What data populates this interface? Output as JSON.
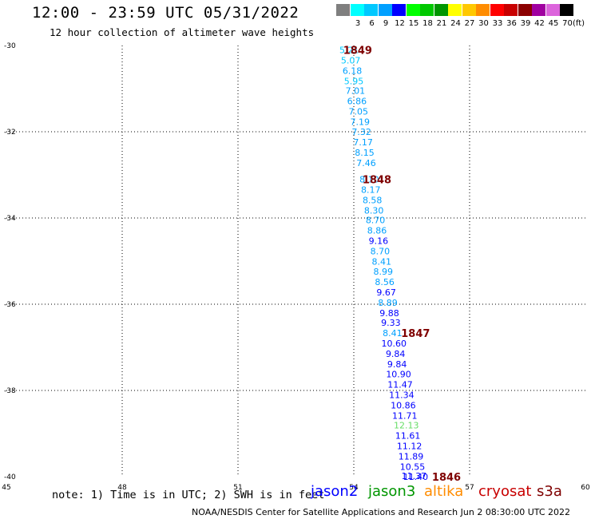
{
  "title": "12:00 - 23:59 UTC 05/31/2022",
  "subtitle": "12 hour collection of altimeter wave heights",
  "scale": {
    "unit": "(ft)",
    "swatches": [
      {
        "label": "",
        "color": "#7f7f7f"
      },
      {
        "label": "3",
        "color": "#00ffff"
      },
      {
        "label": "6",
        "color": "#00c8ff"
      },
      {
        "label": "9",
        "color": "#00a0ff"
      },
      {
        "label": "12",
        "color": "#0000ff"
      },
      {
        "label": "15",
        "color": "#00ff00"
      },
      {
        "label": "18",
        "color": "#00c800"
      },
      {
        "label": "21",
        "color": "#009600"
      },
      {
        "label": "24",
        "color": "#ffff00"
      },
      {
        "label": "27",
        "color": "#ffc800"
      },
      {
        "label": "30",
        "color": "#ff8c00"
      },
      {
        "label": "33",
        "color": "#ff0000"
      },
      {
        "label": "36",
        "color": "#c80000"
      },
      {
        "label": "39",
        "color": "#8b0000"
      },
      {
        "label": "42",
        "color": "#a000a0"
      },
      {
        "label": "45",
        "color": "#dc64dc"
      },
      {
        "label": "70",
        "color": "#000000"
      }
    ]
  },
  "note": "note: 1) Time is in UTC; 2) SWH is in feet",
  "satellites": [
    {
      "name": "jason2",
      "color": "#0000ff"
    },
    {
      "name": "jason3",
      "color": "#009600"
    },
    {
      "name": "altika",
      "color": "#ff8c00"
    },
    {
      "name": "cryosat",
      "color": "#c80000"
    },
    {
      "name": "s3a",
      "color": "#7f0000"
    }
  ],
  "footer": "NOAA/NESDIS Center for Satellite Applications and Research    Jun  2 08:30:00 UTC 2022",
  "chart_data": {
    "type": "scatter",
    "xlim": [
      45,
      60
    ],
    "ylim": [
      -40,
      -30
    ],
    "x_ticks": [
      "45",
      "48",
      "51",
      "54",
      "57",
      "60"
    ],
    "y_ticks": [
      "-30",
      "-32",
      "-34",
      "-36",
      "-38",
      "-40"
    ],
    "grid": true,
    "points": [
      {
        "x": 53.88,
        "y": -30.1,
        "label": "5.21",
        "color": "#00c8ff"
      },
      {
        "x": 53.92,
        "y": -30.34,
        "label": "5.07",
        "color": "#00c8ff"
      },
      {
        "x": 53.96,
        "y": -30.58,
        "label": "6.18",
        "color": "#00a0ff"
      },
      {
        "x": 54.0,
        "y": -30.82,
        "label": "5.95",
        "color": "#00c8ff"
      },
      {
        "x": 54.04,
        "y": -31.05,
        "label": "7.01",
        "color": "#00a0ff"
      },
      {
        "x": 54.08,
        "y": -31.29,
        "label": "6.86",
        "color": "#00a0ff"
      },
      {
        "x": 54.12,
        "y": -31.53,
        "label": "7.05",
        "color": "#00a0ff"
      },
      {
        "x": 54.16,
        "y": -31.77,
        "label": "7.19",
        "color": "#00a0ff"
      },
      {
        "x": 54.2,
        "y": -32.0,
        "label": "7.32",
        "color": "#00a0ff"
      },
      {
        "x": 54.24,
        "y": -32.24,
        "label": "7.17",
        "color": "#00a0ff"
      },
      {
        "x": 54.28,
        "y": -32.48,
        "label": "8.15",
        "color": "#00a0ff"
      },
      {
        "x": 54.32,
        "y": -32.72,
        "label": "7.46",
        "color": "#00a0ff"
      },
      {
        "x": 54.4,
        "y": -33.1,
        "label": "8.10",
        "color": "#00a0ff"
      },
      {
        "x": 54.44,
        "y": -33.34,
        "label": "8.17",
        "color": "#00a0ff"
      },
      {
        "x": 54.48,
        "y": -33.58,
        "label": "8.58",
        "color": "#00a0ff"
      },
      {
        "x": 54.52,
        "y": -33.82,
        "label": "8.30",
        "color": "#00a0ff"
      },
      {
        "x": 54.56,
        "y": -34.05,
        "label": "8.70",
        "color": "#00a0ff"
      },
      {
        "x": 54.6,
        "y": -34.29,
        "label": "8.86",
        "color": "#00a0ff"
      },
      {
        "x": 54.64,
        "y": -34.53,
        "label": "9.16",
        "color": "#0000ff"
      },
      {
        "x": 54.68,
        "y": -34.77,
        "label": "8.70",
        "color": "#00a0ff"
      },
      {
        "x": 54.72,
        "y": -35.01,
        "label": "8.41",
        "color": "#00a0ff"
      },
      {
        "x": 54.76,
        "y": -35.24,
        "label": "8.99",
        "color": "#00a0ff"
      },
      {
        "x": 54.8,
        "y": -35.48,
        "label": "8.56",
        "color": "#00a0ff"
      },
      {
        "x": 54.84,
        "y": -35.72,
        "label": "9.67",
        "color": "#0000ff"
      },
      {
        "x": 54.88,
        "y": -35.96,
        "label": "8.89",
        "color": "#00a0ff"
      },
      {
        "x": 54.92,
        "y": -36.2,
        "label": "9.88",
        "color": "#0000ff"
      },
      {
        "x": 54.96,
        "y": -36.43,
        "label": "9.33",
        "color": "#0000ff"
      },
      {
        "x": 55.0,
        "y": -36.67,
        "label": "8.41",
        "color": "#00a0ff"
      },
      {
        "x": 55.04,
        "y": -36.91,
        "label": "10.60",
        "color": "#0000ff"
      },
      {
        "x": 55.08,
        "y": -37.15,
        "label": "9.84",
        "color": "#0000ff"
      },
      {
        "x": 55.12,
        "y": -37.39,
        "label": "9.84",
        "color": "#0000ff"
      },
      {
        "x": 55.16,
        "y": -37.62,
        "label": "10.90",
        "color": "#0000ff"
      },
      {
        "x": 55.2,
        "y": -37.86,
        "label": "11.47",
        "color": "#0000ff"
      },
      {
        "x": 55.24,
        "y": -38.1,
        "label": "11.34",
        "color": "#0000ff"
      },
      {
        "x": 55.28,
        "y": -38.34,
        "label": "10.86",
        "color": "#0000ff"
      },
      {
        "x": 55.32,
        "y": -38.58,
        "label": "11.71",
        "color": "#0000ff"
      },
      {
        "x": 55.36,
        "y": -38.81,
        "label": "12.13",
        "color": "#66dd66"
      },
      {
        "x": 55.4,
        "y": -39.05,
        "label": "11.61",
        "color": "#0000ff"
      },
      {
        "x": 55.44,
        "y": -39.29,
        "label": "11.12",
        "color": "#0000ff"
      },
      {
        "x": 55.48,
        "y": -39.53,
        "label": "11.89",
        "color": "#0000ff"
      },
      {
        "x": 55.52,
        "y": -39.77,
        "label": "10.55",
        "color": "#0000ff"
      },
      {
        "x": 55.56,
        "y": -39.98,
        "label": "11.37",
        "color": "#0000ff"
      },
      {
        "x": 55.6,
        "y": -40.0,
        "label": "11.40",
        "color": "#0000ff"
      }
    ],
    "pass_labels": [
      {
        "x": 54.1,
        "y": -30.1,
        "label": "1849",
        "color": "#7f0000"
      },
      {
        "x": 54.6,
        "y": -33.1,
        "label": "1848",
        "color": "#7f0000"
      },
      {
        "x": 55.6,
        "y": -36.67,
        "label": "1847",
        "color": "#7f0000"
      },
      {
        "x": 56.4,
        "y": -40.0,
        "label": "1846",
        "color": "#7f0000"
      }
    ]
  }
}
